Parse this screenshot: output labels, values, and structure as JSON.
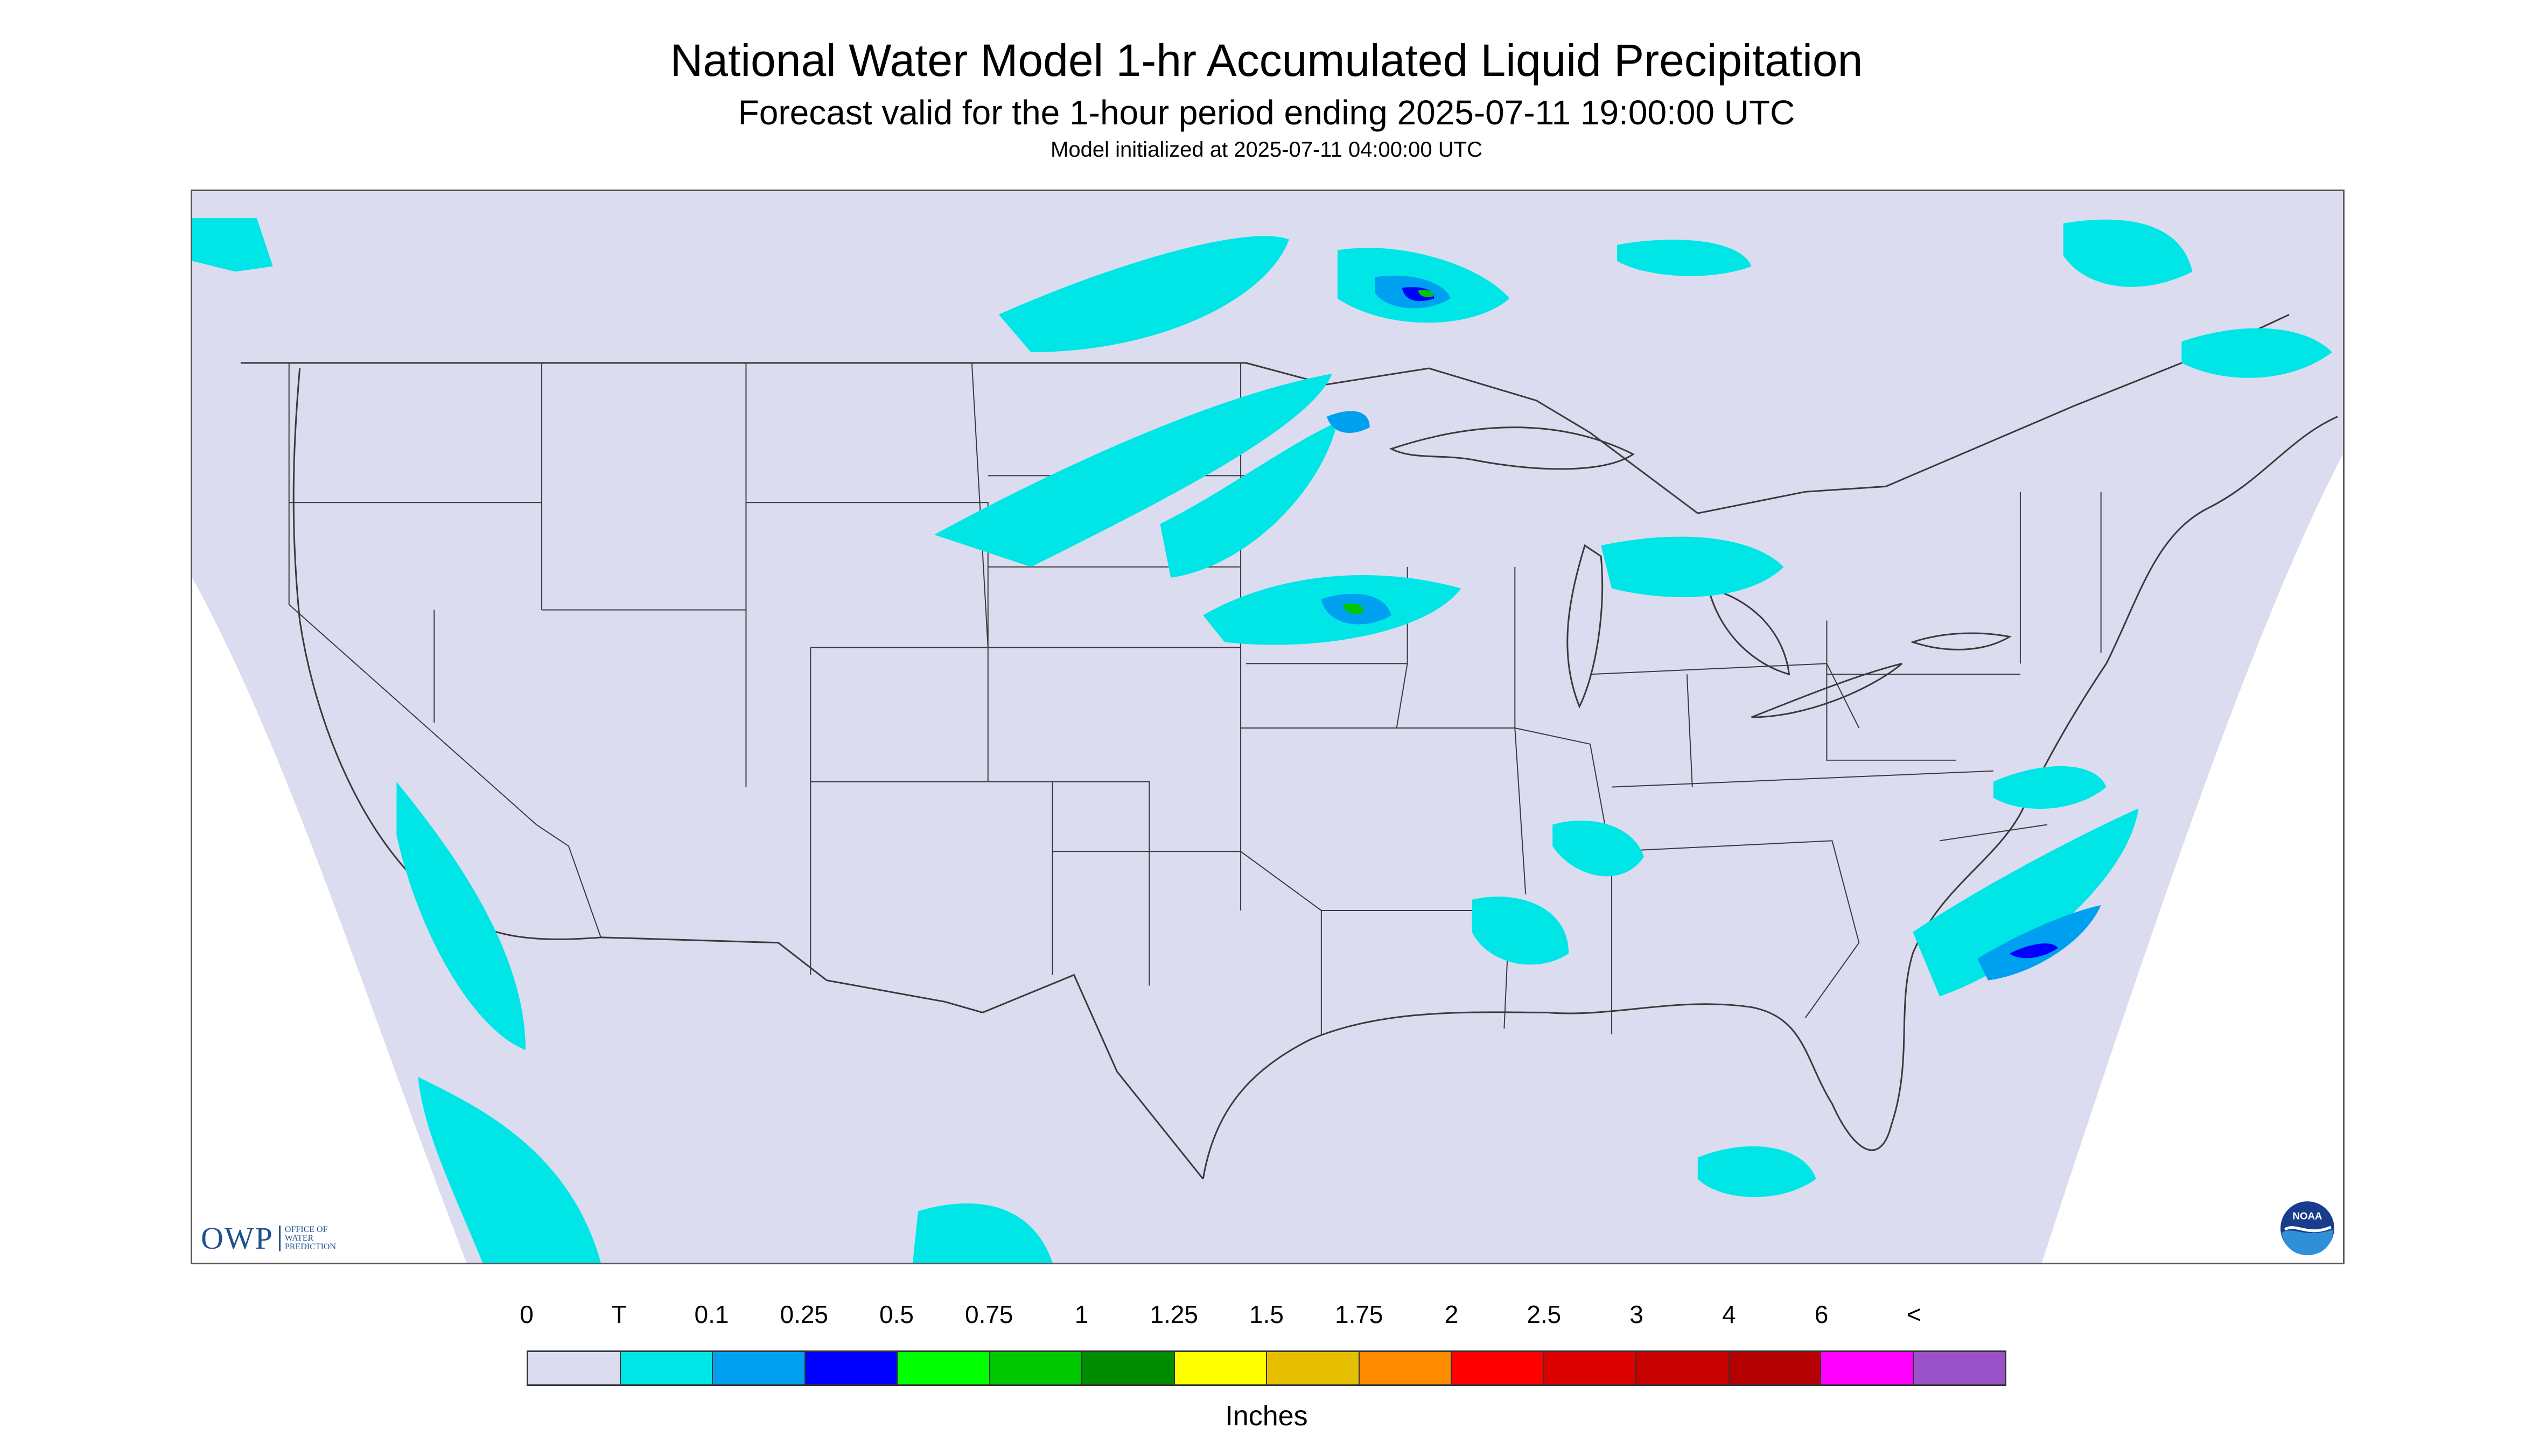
{
  "header": {
    "title": "National Water Model 1-hr Accumulated Liquid Precipitation",
    "subtitle": "Forecast valid for the 1-hour period ending 2025-07-11 19:00:00 UTC",
    "init": "Model initialized at 2025-07-11 04:00:00 UTC"
  },
  "map": {
    "background_color": "#dcdcf0",
    "outside_color": "#ffffff",
    "boundary_color": "#3a3a3a",
    "precip_color_trace": "#00e6e6",
    "precip_color_light": "#00a0f0",
    "precip_color_mod": "#0000ff",
    "precip_color_heavy": "#00c800"
  },
  "logos": {
    "owp_text": "OWP",
    "owp_subtext": "OFFICE OF WATER PREDICTION",
    "noaa_text": "NOAA",
    "owp_icon": "owp-logo",
    "noaa_icon": "noaa-logo"
  },
  "legend": {
    "units": "Inches",
    "ticks": [
      "0",
      "T",
      "0.1",
      "0.25",
      "0.5",
      "0.75",
      "1",
      "1.25",
      "1.5",
      "1.75",
      "2",
      "2.5",
      "3",
      "4",
      "6",
      "<"
    ],
    "colors": [
      "#dcdcf0",
      "#00e6e6",
      "#00a0f0",
      "#0000ff",
      "#00ff00",
      "#00c800",
      "#008c00",
      "#ffff00",
      "#e6be00",
      "#ff8c00",
      "#ff0000",
      "#dc0000",
      "#c80000",
      "#b40000",
      "#ff00ff",
      "#9a52c8"
    ]
  }
}
